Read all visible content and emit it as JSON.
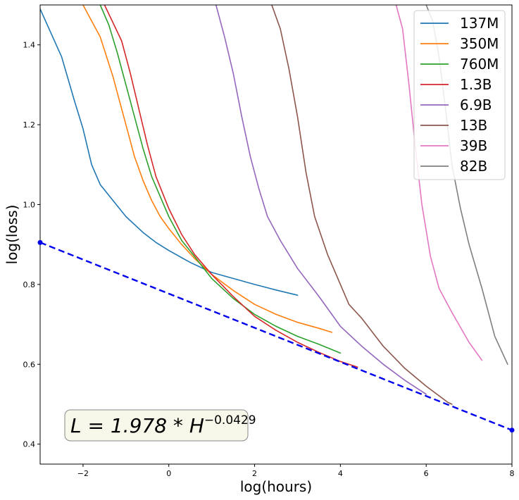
{
  "chart_data": {
    "type": "line",
    "xlabel": "log(hours)",
    "ylabel": "log(loss)",
    "xlim": [
      -3,
      8
    ],
    "ylim": [
      0.35,
      1.5
    ],
    "x_ticks": [
      -2,
      0,
      2,
      4,
      6,
      8
    ],
    "x_tick_labels": [
      "−2",
      "0",
      "2",
      "4",
      "6",
      "8"
    ],
    "y_ticks": [
      0.4,
      0.6,
      0.8,
      1.0,
      1.2,
      1.4
    ],
    "y_tick_labels": [
      "0.4",
      "0.6",
      "0.8",
      "1.0",
      "1.2",
      "1.4"
    ],
    "grid": false,
    "legend_position": "top-right",
    "series": [
      {
        "name": "137M",
        "color": "#1f77b4",
        "x": [
          -3.0,
          -2.5,
          -2.2,
          -2.0,
          -1.8,
          -1.6,
          -1.3,
          -1.0,
          -0.6,
          -0.3,
          0.0,
          0.5,
          1.0,
          1.5,
          2.0,
          2.5,
          3.0
        ],
        "y": [
          1.49,
          1.37,
          1.26,
          1.19,
          1.1,
          1.05,
          1.01,
          0.97,
          0.93,
          0.905,
          0.885,
          0.855,
          0.83,
          0.815,
          0.8,
          0.786,
          0.773
        ]
      },
      {
        "name": "350M",
        "color": "#ff7f0e",
        "x": [
          -2.0,
          -1.6,
          -1.3,
          -1.0,
          -0.8,
          -0.6,
          -0.4,
          -0.2,
          0.0,
          0.3,
          0.6,
          1.0,
          1.5,
          2.0,
          2.5,
          3.0,
          3.5,
          3.8
        ],
        "y": [
          1.5,
          1.42,
          1.32,
          1.2,
          1.12,
          1.06,
          1.01,
          0.97,
          0.94,
          0.9,
          0.865,
          0.825,
          0.785,
          0.75,
          0.725,
          0.705,
          0.69,
          0.68
        ]
      },
      {
        "name": "760M",
        "color": "#2ca02c",
        "x": [
          -1.6,
          -1.4,
          -1.2,
          -1.0,
          -0.8,
          -0.6,
          -0.4,
          -0.2,
          0.0,
          0.3,
          0.6,
          1.0,
          1.5,
          2.0,
          2.5,
          3.0,
          3.5,
          4.0
        ],
        "y": [
          1.5,
          1.45,
          1.38,
          1.3,
          1.22,
          1.14,
          1.07,
          1.02,
          0.97,
          0.91,
          0.87,
          0.815,
          0.765,
          0.725,
          0.695,
          0.67,
          0.65,
          0.628
        ]
      },
      {
        "name": "1.3B",
        "color": "#d62728",
        "x": [
          -1.5,
          -1.1,
          -0.9,
          -0.7,
          -0.5,
          -0.3,
          0.0,
          0.3,
          0.6,
          1.0,
          1.5,
          2.0,
          2.5,
          3.0,
          3.5,
          4.0,
          4.4
        ],
        "y": [
          1.5,
          1.41,
          1.33,
          1.24,
          1.15,
          1.07,
          0.99,
          0.925,
          0.875,
          0.825,
          0.77,
          0.72,
          0.685,
          0.655,
          0.63,
          0.607,
          0.593
        ]
      },
      {
        "name": "6.9B",
        "color": "#9467bd",
        "x": [
          1.1,
          1.3,
          1.5,
          1.7,
          1.9,
          2.1,
          2.3,
          2.6,
          3.0,
          3.5,
          4.0,
          4.5,
          5.0,
          5.5,
          6.0
        ],
        "y": [
          1.5,
          1.42,
          1.33,
          1.22,
          1.12,
          1.04,
          0.97,
          0.91,
          0.84,
          0.77,
          0.695,
          0.645,
          0.6,
          0.56,
          0.525
        ]
      },
      {
        "name": "13B",
        "color": "#8c564b",
        "x": [
          2.4,
          2.6,
          2.8,
          3.0,
          3.2,
          3.4,
          3.7,
          4.0,
          4.2,
          4.5,
          5.0,
          5.5,
          6.0,
          6.5,
          6.6
        ],
        "y": [
          1.5,
          1.44,
          1.34,
          1.22,
          1.08,
          0.97,
          0.875,
          0.8,
          0.75,
          0.715,
          0.645,
          0.59,
          0.545,
          0.505,
          0.5
        ]
      },
      {
        "name": "39B",
        "color": "#e377c2",
        "x": [
          5.3,
          5.45,
          5.6,
          5.75,
          5.9,
          6.1,
          6.3,
          6.6,
          7.0,
          7.3
        ],
        "y": [
          1.5,
          1.44,
          1.3,
          1.14,
          1.0,
          0.87,
          0.79,
          0.73,
          0.655,
          0.61
        ],
        "_unused": null
      },
      {
        "name": "82B",
        "color": "#7f7f7f",
        "x": [
          6.0,
          6.15,
          6.3,
          6.45,
          6.6,
          6.8,
          7.0,
          7.3,
          7.6,
          7.9
        ],
        "y": [
          1.5,
          1.46,
          1.37,
          1.24,
          1.1,
          0.99,
          0.9,
          0.79,
          0.67,
          0.6
        ]
      }
    ],
    "fit_line": {
      "label": "L=1.978*H^-0.0429",
      "display_main": "L = 1.978 * H",
      "display_exponent": "−0.0429",
      "color": "#0000ee",
      "x": [
        -3,
        8
      ],
      "y": [
        0.905,
        0.435
      ]
    }
  }
}
